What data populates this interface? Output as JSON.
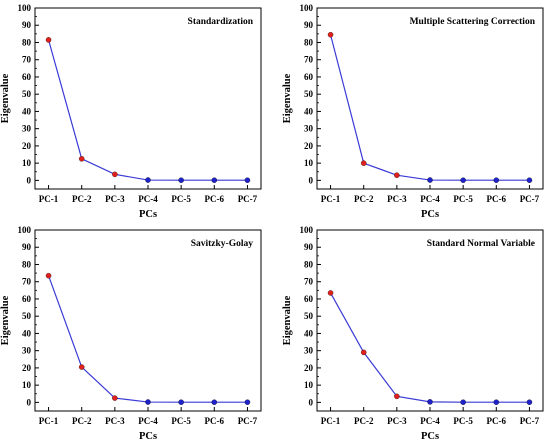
{
  "colors": {
    "line": "#3a3ad6",
    "first_point": "#e0201c",
    "rest_point": "#1e22c8",
    "frame": "#000000"
  },
  "chart_data": [
    {
      "type": "line",
      "title": "Standardization",
      "xlabel": "PCs",
      "ylabel": "Eigenvalue",
      "categories": [
        "PC-1",
        "PC-2",
        "PC-3",
        "PC-4",
        "PC-5",
        "PC-6",
        "PC-7"
      ],
      "values": [
        81.5,
        12.5,
        3.5,
        0.2,
        0.1,
        0.1,
        0.1
      ],
      "ylim": [
        0,
        100
      ],
      "yticks": [
        "0",
        "10",
        "20",
        "30",
        "40",
        "50",
        "60",
        "70",
        "80",
        "90",
        "100"
      ],
      "grid": false,
      "legend": "none"
    },
    {
      "type": "line",
      "title": "Multiple Scattering Correction",
      "xlabel": "PCs",
      "ylabel": "Eigenvalue",
      "categories": [
        "PC-1",
        "PC-2",
        "PC-3",
        "PC-4",
        "PC-5",
        "PC-6",
        "PC-7"
      ],
      "values": [
        84.5,
        10,
        3,
        0.2,
        0.1,
        0.1,
        0.1
      ],
      "ylim": [
        0,
        100
      ],
      "yticks": [
        "0",
        "10",
        "20",
        "30",
        "40",
        "50",
        "60",
        "70",
        "80",
        "90",
        "100"
      ],
      "grid": false,
      "legend": "none"
    },
    {
      "type": "line",
      "title": "Savitzky-Golay",
      "xlabel": "PCs",
      "ylabel": "Eigenvalue",
      "categories": [
        "PC-1",
        "PC-2",
        "PC-3",
        "PC-4",
        "PC-5",
        "PC-6",
        "PC-7"
      ],
      "values": [
        73.5,
        20.5,
        2.5,
        0.2,
        0.1,
        0.1,
        0.1
      ],
      "ylim": [
        0,
        100
      ],
      "yticks": [
        "0",
        "10",
        "20",
        "30",
        "40",
        "50",
        "60",
        "70",
        "80",
        "90",
        "100"
      ],
      "grid": false,
      "legend": "none"
    },
    {
      "type": "line",
      "title": "Standard Normal Variable",
      "xlabel": "PCs",
      "ylabel": "Eigenvalue",
      "categories": [
        "PC-1",
        "PC-2",
        "PC-3",
        "PC-4",
        "PC-5",
        "PC-6",
        "PC-7"
      ],
      "values": [
        63.5,
        29,
        3.5,
        0.3,
        0.1,
        0.1,
        0.1
      ],
      "ylim": [
        0,
        100
      ],
      "yticks": [
        "0",
        "10",
        "20",
        "30",
        "40",
        "50",
        "60",
        "70",
        "80",
        "90",
        "100"
      ],
      "grid": false,
      "legend": "none"
    }
  ]
}
